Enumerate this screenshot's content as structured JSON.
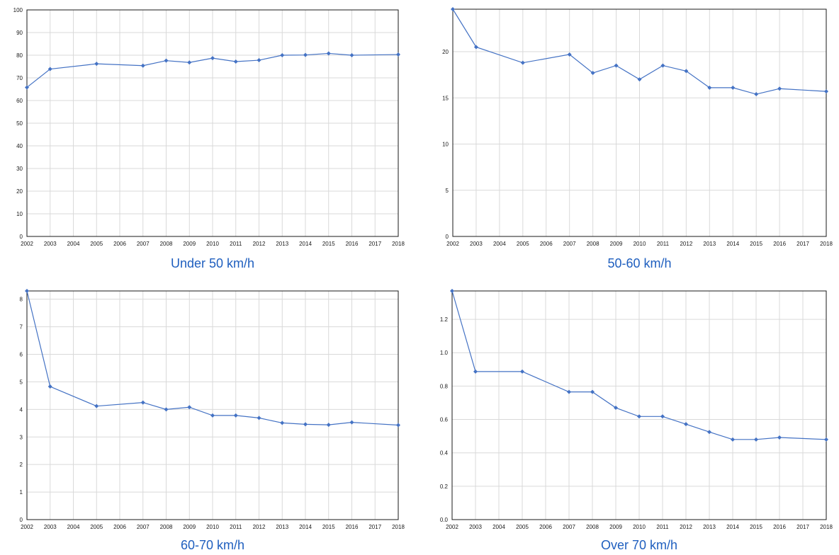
{
  "chart_data": [
    {
      "type": "line",
      "title": "Under 50 km/h",
      "xlabel": "",
      "ylabel": "",
      "x": [
        "2002",
        "2003",
        "2004",
        "2005",
        "2006",
        "2007",
        "2008",
        "2009",
        "2010",
        "2011",
        "2012",
        "2013",
        "2014",
        "2015",
        "2016",
        "2017",
        "2018"
      ],
      "points": [
        {
          "x": 2002,
          "y": 65.8
        },
        {
          "x": 2003,
          "y": 73.9
        },
        {
          "x": 2005,
          "y": 76.2
        },
        {
          "x": 2007,
          "y": 75.4
        },
        {
          "x": 2008,
          "y": 77.6
        },
        {
          "x": 2009,
          "y": 76.8
        },
        {
          "x": 2010,
          "y": 78.7
        },
        {
          "x": 2011,
          "y": 77.2
        },
        {
          "x": 2012,
          "y": 77.8
        },
        {
          "x": 2013,
          "y": 80.0
        },
        {
          "x": 2014,
          "y": 80.1
        },
        {
          "x": 2015,
          "y": 80.8
        },
        {
          "x": 2016,
          "y": 80.0
        },
        {
          "x": 2018,
          "y": 80.3
        }
      ],
      "yticks": [
        "0",
        "10",
        "20",
        "30",
        "40",
        "50",
        "60",
        "70",
        "80",
        "90",
        "100"
      ],
      "xlim": [
        2002,
        2018
      ],
      "ylim": [
        0,
        100
      ],
      "grid": true,
      "color": "#4472c4"
    },
    {
      "type": "line",
      "title": "50-60 km/h",
      "xlabel": "",
      "ylabel": "",
      "x": [
        "2002",
        "2003",
        "2004",
        "2005",
        "2006",
        "2007",
        "2008",
        "2009",
        "2010",
        "2011",
        "2012",
        "2013",
        "2014",
        "2015",
        "2016",
        "2017",
        "2018"
      ],
      "points": [
        {
          "x": 2002,
          "y": 24.6
        },
        {
          "x": 2003,
          "y": 20.5
        },
        {
          "x": 2005,
          "y": 18.8
        },
        {
          "x": 2007,
          "y": 19.7
        },
        {
          "x": 2008,
          "y": 17.7
        },
        {
          "x": 2009,
          "y": 18.5
        },
        {
          "x": 2010,
          "y": 17.0
        },
        {
          "x": 2011,
          "y": 18.5
        },
        {
          "x": 2012,
          "y": 17.9
        },
        {
          "x": 2013,
          "y": 16.1
        },
        {
          "x": 2014,
          "y": 16.1
        },
        {
          "x": 2015,
          "y": 15.4
        },
        {
          "x": 2016,
          "y": 16.0
        },
        {
          "x": 2018,
          "y": 15.7
        }
      ],
      "yticks": [
        "0",
        "5",
        "10",
        "15",
        "20"
      ],
      "xlim": [
        2002,
        2018
      ],
      "ylim": [
        0,
        24.6
      ],
      "grid": true,
      "color": "#4472c4"
    },
    {
      "type": "line",
      "title": "60-70 km/h",
      "xlabel": "",
      "ylabel": "",
      "x": [
        "2002",
        "2003",
        "2004",
        "2005",
        "2006",
        "2007",
        "2008",
        "2009",
        "2010",
        "2011",
        "2012",
        "2013",
        "2014",
        "2015",
        "2016",
        "2017",
        "2018"
      ],
      "points": [
        {
          "x": 2002,
          "y": 8.3
        },
        {
          "x": 2003,
          "y": 4.83
        },
        {
          "x": 2005,
          "y": 4.12
        },
        {
          "x": 2007,
          "y": 4.25
        },
        {
          "x": 2008,
          "y": 4.0
        },
        {
          "x": 2009,
          "y": 4.08
        },
        {
          "x": 2010,
          "y": 3.78
        },
        {
          "x": 2011,
          "y": 3.78
        },
        {
          "x": 2012,
          "y": 3.69
        },
        {
          "x": 2013,
          "y": 3.51
        },
        {
          "x": 2014,
          "y": 3.46
        },
        {
          "x": 2015,
          "y": 3.44
        },
        {
          "x": 2016,
          "y": 3.53
        },
        {
          "x": 2018,
          "y": 3.43
        }
      ],
      "yticks": [
        "0",
        "1",
        "2",
        "3",
        "4",
        "5",
        "6",
        "7",
        "8"
      ],
      "xlim": [
        2002,
        2018
      ],
      "ylim": [
        0,
        8.3
      ],
      "grid": true,
      "color": "#4472c4"
    },
    {
      "type": "line",
      "title": "Over 70 km/h",
      "xlabel": "",
      "ylabel": "",
      "x": [
        "2002",
        "2003",
        "2004",
        "2005",
        "2006",
        "2007",
        "2008",
        "2009",
        "2010",
        "2011",
        "2012",
        "2013",
        "2014",
        "2015",
        "2016",
        "2017",
        "2018"
      ],
      "points": [
        {
          "x": 2002,
          "y": 1.37
        },
        {
          "x": 2003,
          "y": 0.887
        },
        {
          "x": 2005,
          "y": 0.887
        },
        {
          "x": 2007,
          "y": 0.765
        },
        {
          "x": 2008,
          "y": 0.765
        },
        {
          "x": 2009,
          "y": 0.67
        },
        {
          "x": 2010,
          "y": 0.618
        },
        {
          "x": 2011,
          "y": 0.618
        },
        {
          "x": 2012,
          "y": 0.572
        },
        {
          "x": 2013,
          "y": 0.525
        },
        {
          "x": 2014,
          "y": 0.48
        },
        {
          "x": 2015,
          "y": 0.48
        },
        {
          "x": 2016,
          "y": 0.492
        },
        {
          "x": 2018,
          "y": 0.48
        }
      ],
      "yticks": [
        "0.0",
        "0.2",
        "0.4",
        "0.6",
        "0.8",
        "1.0",
        "1.2"
      ],
      "xlim": [
        2002,
        2018
      ],
      "ylim": [
        0,
        1.37
      ],
      "grid": true,
      "color": "#4472c4"
    }
  ]
}
